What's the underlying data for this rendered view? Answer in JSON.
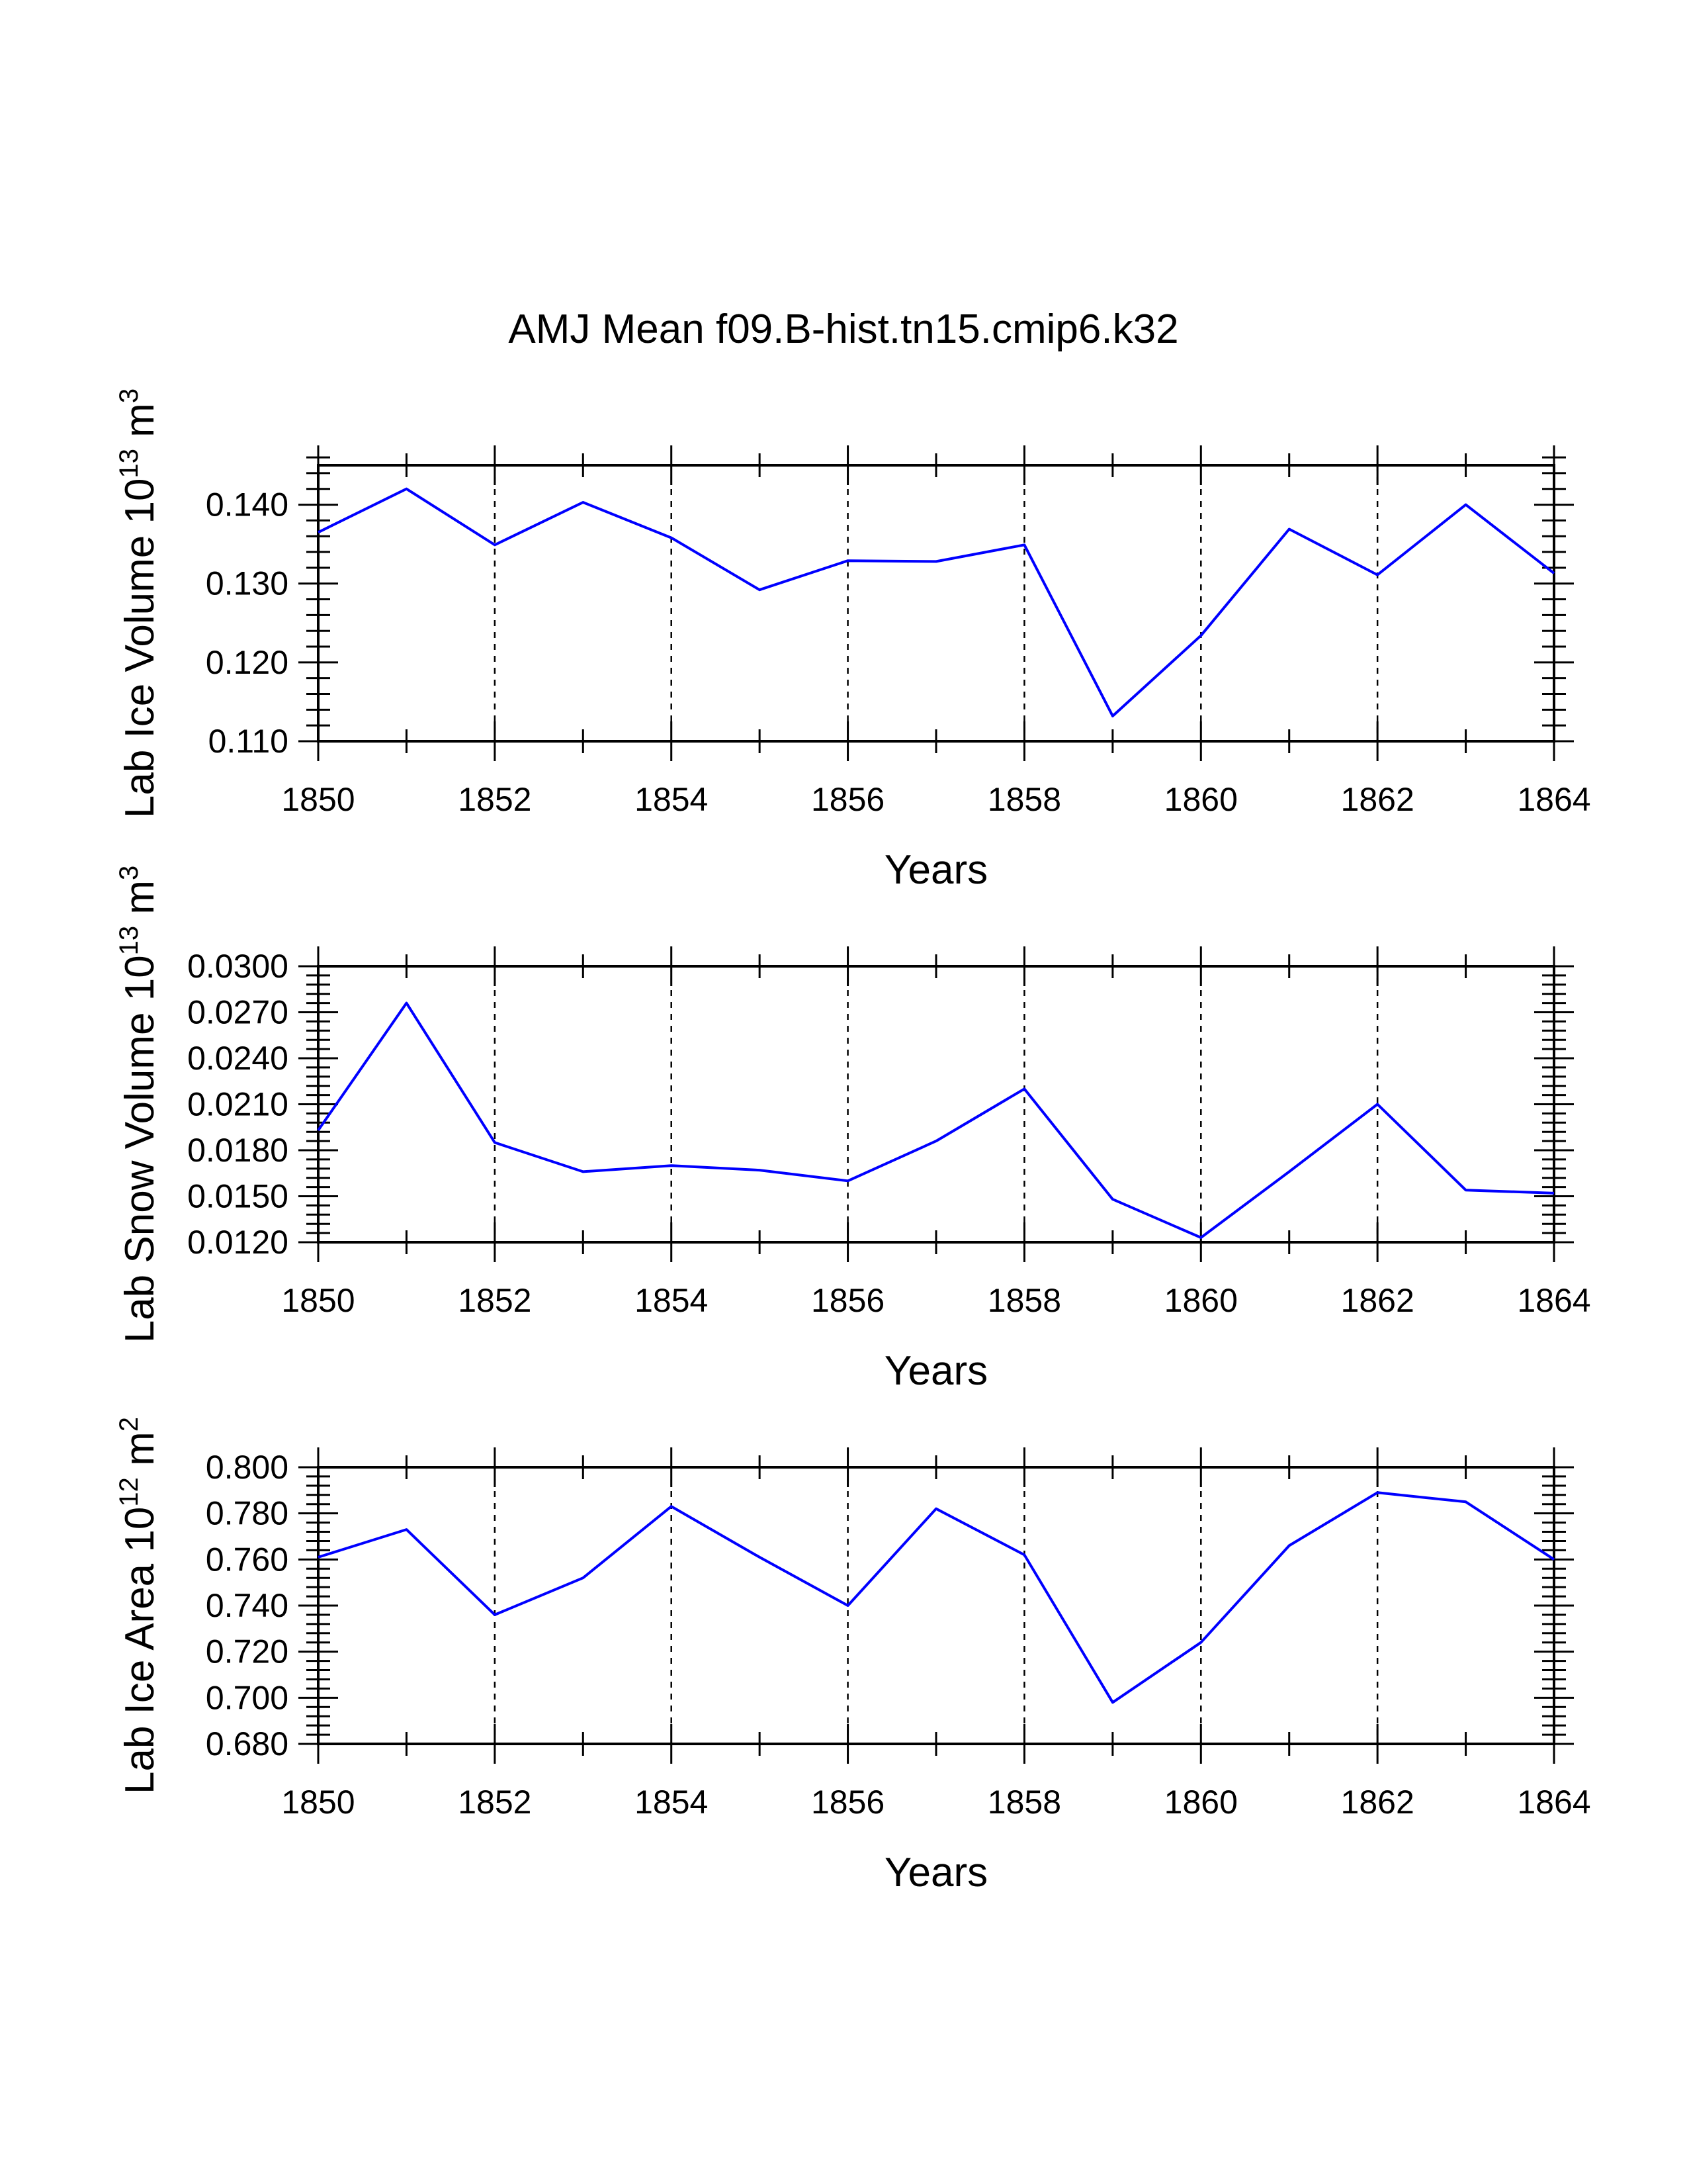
{
  "title": "AMJ Mean f09.B-hist.tn15.cmip6.k32",
  "chart_data": [
    {
      "type": "line",
      "ylabel_prefix": "Lab Ice Volume 10",
      "ylabel_sup": "13",
      "ylabel_mid": " m",
      "ylabel_sup2": "3",
      "xlabel": "Years",
      "x": [
        1850,
        1851,
        1852,
        1853,
        1854,
        1855,
        1856,
        1857,
        1858,
        1859,
        1860,
        1861,
        1862,
        1863,
        1864
      ],
      "series": [
        {
          "name": "Lab Ice Volume",
          "color": "#0000ff",
          "values": [
            0.1365,
            0.142,
            0.1349,
            0.1403,
            0.1358,
            0.1292,
            0.1329,
            0.1328,
            0.1349,
            0.1132,
            0.1234,
            0.1369,
            0.1311,
            0.14,
            0.1313
          ]
        }
      ],
      "xlim": [
        1850,
        1864
      ],
      "ylim": [
        0.11,
        0.145
      ],
      "xticks": [
        "1850",
        "1852",
        "1854",
        "1856",
        "1858",
        "1860",
        "1862",
        "1864"
      ],
      "yticks": [
        "0.110",
        "0.120",
        "0.130",
        "0.140"
      ]
    },
    {
      "type": "line",
      "ylabel_prefix": "Lab Snow Volume 10",
      "ylabel_sup": "13",
      "ylabel_mid": " m",
      "ylabel_sup2": "3",
      "xlabel": "Years",
      "x": [
        1850,
        1851,
        1852,
        1853,
        1854,
        1855,
        1856,
        1857,
        1858,
        1859,
        1860,
        1861,
        1862,
        1863,
        1864
      ],
      "series": [
        {
          "name": "Lab Snow Volume",
          "color": "#0000ff",
          "values": [
            0.0193,
            0.0276,
            0.0185,
            0.0166,
            0.017,
            0.0167,
            0.016,
            0.0186,
            0.022,
            0.0148,
            0.0123,
            0.0166,
            0.021,
            0.0154,
            0.0152
          ]
        }
      ],
      "xlim": [
        1850,
        1864
      ],
      "ylim": [
        0.012,
        0.03
      ],
      "xticks": [
        "1850",
        "1852",
        "1854",
        "1856",
        "1858",
        "1860",
        "1862",
        "1864"
      ],
      "yticks": [
        "0.0120",
        "0.0150",
        "0.0180",
        "0.0210",
        "0.0240",
        "0.0270",
        "0.0300"
      ]
    },
    {
      "type": "line",
      "ylabel_prefix": "Lab Ice Area 10",
      "ylabel_sup": "12",
      "ylabel_mid": " m",
      "ylabel_sup2": "2",
      "xlabel": "Years",
      "x": [
        1850,
        1851,
        1852,
        1853,
        1854,
        1855,
        1856,
        1857,
        1858,
        1859,
        1860,
        1861,
        1862,
        1863,
        1864
      ],
      "series": [
        {
          "name": "Lab Ice Area",
          "color": "#0000ff",
          "values": [
            0.761,
            0.773,
            0.736,
            0.752,
            0.783,
            0.761,
            0.74,
            0.782,
            0.762,
            0.698,
            0.724,
            0.766,
            0.789,
            0.785,
            0.76
          ]
        }
      ],
      "xlim": [
        1850,
        1864
      ],
      "ylim": [
        0.68,
        0.8
      ],
      "xticks": [
        "1850",
        "1852",
        "1854",
        "1856",
        "1858",
        "1860",
        "1862",
        "1864"
      ],
      "yticks": [
        "0.680",
        "0.700",
        "0.720",
        "0.740",
        "0.760",
        "0.780",
        "0.800"
      ]
    }
  ]
}
